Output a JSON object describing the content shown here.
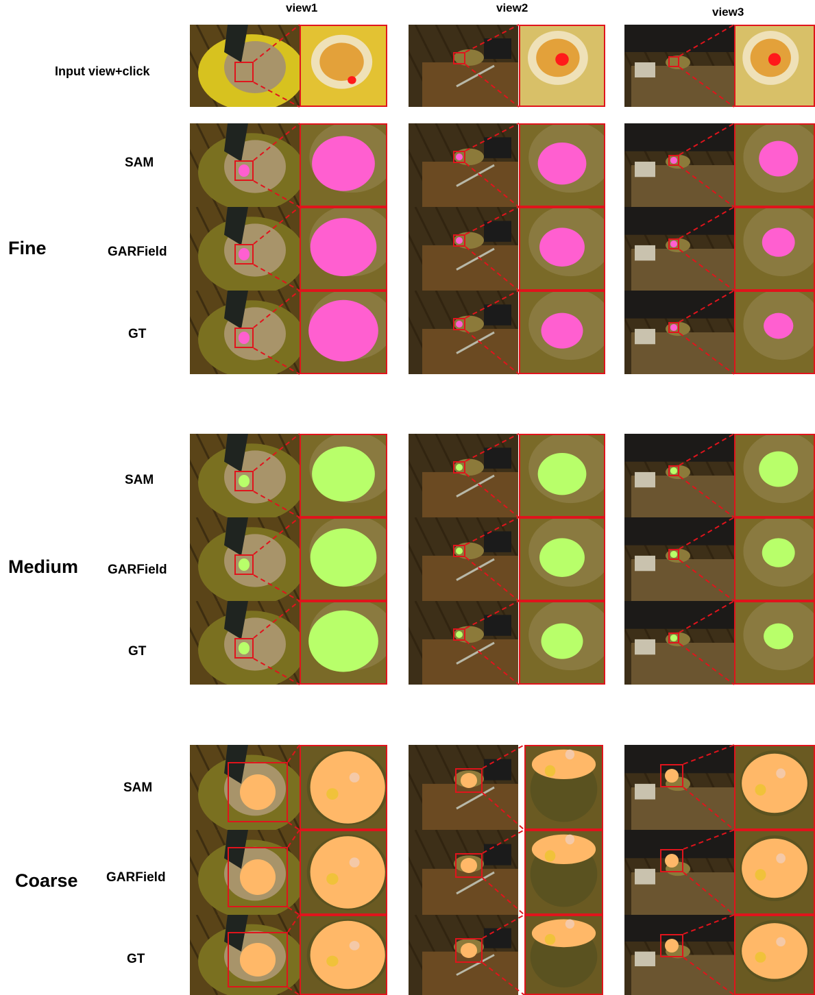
{
  "columns": [
    "view1",
    "view2",
    "view3"
  ],
  "input_row_label": "Input view+click",
  "groups": [
    {
      "name": "Fine",
      "rows": [
        "SAM",
        "GARField",
        "GT"
      ],
      "mask_color": "#ff5fd0"
    },
    {
      "name": "Medium",
      "rows": [
        "SAM",
        "GARField",
        "GT"
      ],
      "mask_color": "#b8ff6a"
    },
    {
      "name": "Coarse",
      "rows": [
        "SAM",
        "GARField",
        "GT"
      ],
      "mask_color": "#ffb868"
    }
  ],
  "colors": {
    "highlight_box": "#e0141c",
    "click_point": "#ff1a1a"
  }
}
